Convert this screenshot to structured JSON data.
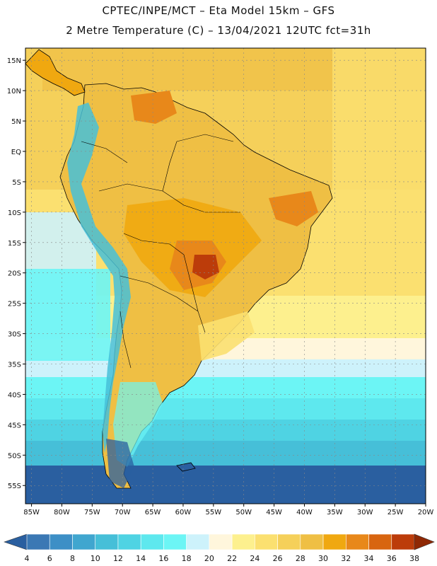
{
  "header": {
    "title_line1": "CPTEC/INPE/MCT –  Eta Model 15km – GFS",
    "title_line2": "2 Metre Temperature (C) – 13/04/2021 12UTC fct=31h"
  },
  "map": {
    "lat_labels": [
      "15N",
      "10N",
      "5N",
      "EQ",
      "5S",
      "10S",
      "15S",
      "20S",
      "25S",
      "30S",
      "35S",
      "40S",
      "45S",
      "50S",
      "55S"
    ],
    "lat_values": [
      15,
      10,
      5,
      0,
      -5,
      -10,
      -15,
      -20,
      -25,
      -30,
      -35,
      -40,
      -45,
      -50,
      -55
    ],
    "lon_labels": [
      "85W",
      "80W",
      "75W",
      "70W",
      "65W",
      "60W",
      "55W",
      "50W",
      "45W",
      "40W",
      "35W",
      "30W",
      "25W",
      "20W"
    ],
    "lon_values": [
      -85,
      -80,
      -75,
      -70,
      -65,
      -60,
      -55,
      -50,
      -45,
      -40,
      -35,
      -30,
      -25,
      -20
    ],
    "lon_range": [
      -86,
      -20
    ],
    "lat_range": [
      -58,
      17
    ]
  },
  "legend": {
    "levels": [
      "4",
      "6",
      "8",
      "10",
      "12",
      "14",
      "16",
      "18",
      "20",
      "22",
      "24",
      "26",
      "28",
      "30",
      "32",
      "34",
      "36",
      "38"
    ],
    "colors": [
      "#2a5fa0",
      "#3b78b4",
      "#3d8fc6",
      "#40a6cf",
      "#46bfd8",
      "#4fd3e3",
      "#5ee8ee",
      "#6cf5f5",
      "#cdf2fb",
      "#fff6dc",
      "#fdf08e",
      "#fbe070",
      "#f5d05a",
      "#efbf44",
      "#f0a810",
      "#e8881a",
      "#d86510",
      "#bc3c0a",
      "#8f2804"
    ]
  }
}
